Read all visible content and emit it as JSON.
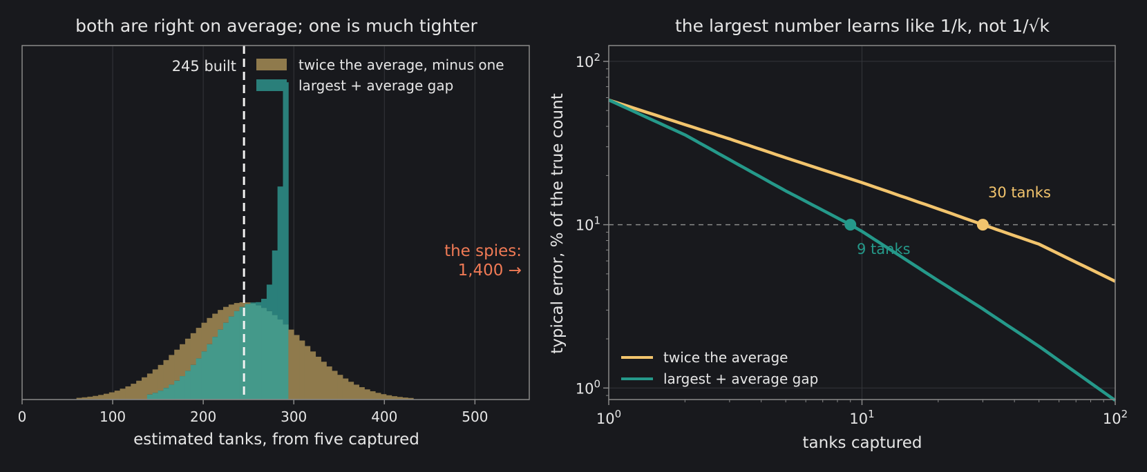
{
  "colors": {
    "background": "#18191d",
    "text": "#e6e6e6",
    "axis": "#8a8a8a",
    "grid": "#34363b",
    "amber": "#f2c46d",
    "amber_hist": "#8f7a4c",
    "teal": "#25998a",
    "teal_hist": "#2a7f7a",
    "overlap": "#44998a",
    "coral": "#f07a55"
  },
  "chart_data": [
    {
      "type": "histogram",
      "title": "both are right on average; one is much tighter",
      "xlabel": "estimated tanks, from five captured",
      "ylabel": "",
      "xlim": [
        0,
        560
      ],
      "xticks": [
        0,
        100,
        200,
        300,
        400,
        500
      ],
      "xtick_labels": [
        "0",
        "100",
        "200",
        "300",
        "400",
        "500"
      ],
      "yticks": [],
      "grid": "vertical",
      "bin_width": 6,
      "true_value": 245,
      "true_value_label": "245 built",
      "outlier_annotation": [
        "the spies:",
        "1,400 →"
      ],
      "legend_position": "top-right",
      "series": [
        {
          "name": "twice the average, minus one",
          "color": "#8f7a4c",
          "center": 245,
          "sd": 64,
          "min": 58,
          "max": 432,
          "peak_relative": 0.375
        },
        {
          "name": "largest + average gap",
          "color": "#2a7f7a",
          "min": 140,
          "max": 293,
          "shape": "concentrated just below 294, peak at 288",
          "peak_relative": 1.0
        }
      ]
    },
    {
      "type": "line",
      "title": "the largest number learns like 1/k, not 1/√k",
      "xlabel": "tanks captured",
      "ylabel": "typical error, % of the true count",
      "xscale": "log",
      "yscale": "log",
      "xlim": [
        1,
        100
      ],
      "ylim": [
        0.85,
        125
      ],
      "xticks": [
        1,
        10,
        100
      ],
      "xtick_labels": [
        [
          "10",
          "0"
        ],
        [
          "10",
          "1"
        ],
        [
          "10",
          "2"
        ]
      ],
      "yticks": [
        1,
        10,
        100
      ],
      "ytick_labels": [
        [
          "10",
          "0"
        ],
        [
          "10",
          "1"
        ],
        [
          "10",
          "2"
        ]
      ],
      "grid": "both",
      "reference_line": 10,
      "legend_position": "bottom-left",
      "series": [
        {
          "name": "twice the average",
          "color": "#f2c46d",
          "x": [
            1,
            2,
            3,
            5,
            10,
            20,
            30,
            50,
            100
          ],
          "y": [
            58,
            41,
            33.5,
            25.7,
            18.1,
            12.5,
            10.0,
            7.6,
            4.5
          ]
        },
        {
          "name": "largest + average gap",
          "color": "#25998a",
          "x": [
            1,
            2,
            3,
            5,
            9,
            10,
            20,
            30,
            50,
            100
          ],
          "y": [
            58,
            35.5,
            25,
            16.1,
            10.0,
            9.1,
            4.55,
            3.05,
            1.8,
            0.84
          ]
        }
      ],
      "markers": [
        {
          "x": 30,
          "y": 10,
          "label": "30 tanks",
          "color": "#f2c46d"
        },
        {
          "x": 9,
          "y": 10,
          "label": "9 tanks",
          "color": "#25998a"
        }
      ]
    }
  ]
}
